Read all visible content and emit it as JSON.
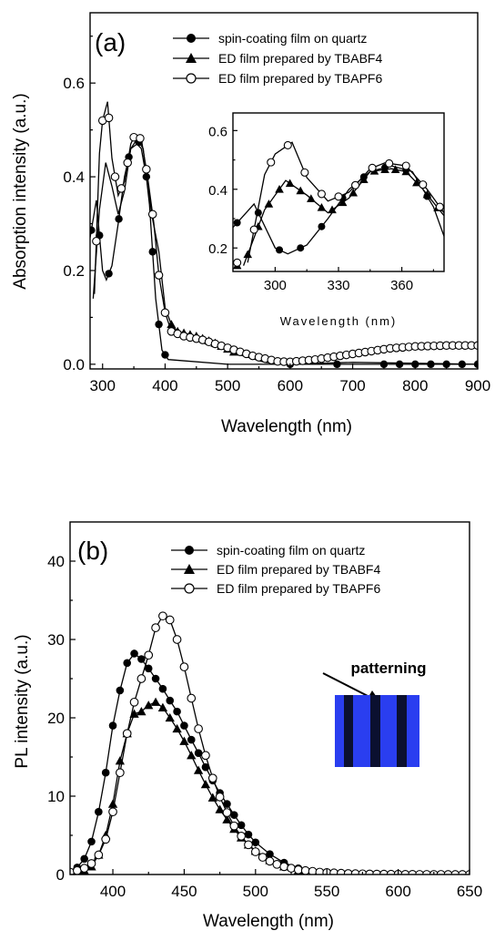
{
  "chart_data": [
    {
      "type": "line",
      "panel_label": "(a)",
      "xlabel": "Wavelength (nm)",
      "ylabel": "Absorption intensity (a.u.)",
      "xlim": [
        280,
        900
      ],
      "ylim": [
        -0.01,
        0.75
      ],
      "xticks": [
        300,
        400,
        500,
        600,
        700,
        800,
        900
      ],
      "yticks": [
        0.0,
        0.2,
        0.4,
        0.6
      ],
      "ytick_labels": [
        "0.0",
        "0.2",
        "0.4",
        "0.6"
      ],
      "legend_position": "top-right",
      "series": [
        {
          "name": "spin-coating film on quartz",
          "marker": "filled-circle",
          "points": [
            [
              280,
              0.27
            ],
            [
              290,
              0.35
            ],
            [
              300,
              0.2
            ],
            [
              306,
              0.18
            ],
            [
              315,
              0.21
            ],
            [
              325,
              0.3
            ],
            [
              335,
              0.4
            ],
            [
              345,
              0.46
            ],
            [
              355,
              0.48
            ],
            [
              365,
              0.46
            ],
            [
              375,
              0.34
            ],
            [
              385,
              0.14
            ],
            [
              395,
              0.03
            ],
            [
              405,
              0.01
            ],
            [
              500,
              0.0
            ],
            [
              600,
              0.0
            ],
            [
              700,
              0.0
            ],
            [
              800,
              0.0
            ],
            [
              900,
              0.0
            ]
          ],
          "marker_x": [
            282,
            295,
            310,
            326,
            342,
            358,
            370,
            380,
            390,
            400,
            600,
            675,
            750,
            775,
            800,
            825,
            850,
            875,
            900
          ]
        },
        {
          "name": "ED film prepared by TBABF4",
          "marker": "filled-triangle",
          "points": [
            [
              285,
              0.14
            ],
            [
              295,
              0.33
            ],
            [
              305,
              0.43
            ],
            [
              315,
              0.38
            ],
            [
              325,
              0.32
            ],
            [
              335,
              0.37
            ],
            [
              345,
              0.46
            ],
            [
              355,
              0.47
            ],
            [
              362,
              0.46
            ],
            [
              370,
              0.4
            ],
            [
              380,
              0.31
            ],
            [
              390,
              0.24
            ],
            [
              400,
              0.12
            ],
            [
              410,
              0.085
            ],
            [
              420,
              0.07
            ],
            [
              450,
              0.06
            ],
            [
              480,
              0.045
            ],
            [
              520,
              0.02
            ],
            [
              560,
              0.004
            ],
            [
              600,
              0.0
            ],
            [
              650,
              0.002
            ],
            [
              700,
              0.004
            ],
            [
              750,
              0.003
            ],
            [
              800,
              0.002
            ],
            [
              850,
              0.001
            ],
            [
              900,
              0.0
            ]
          ],
          "marker_x": [
            410,
            420,
            430,
            440,
            450,
            460,
            470,
            480,
            490,
            500,
            510
          ]
        },
        {
          "name": "ED film prepared by TBAPF6",
          "marker": "open-circle",
          "points": [
            [
              287,
              0.15
            ],
            [
              295,
              0.45
            ],
            [
              300,
              0.52
            ],
            [
              308,
              0.56
            ],
            [
              315,
              0.44
            ],
            [
              325,
              0.36
            ],
            [
              335,
              0.39
            ],
            [
              345,
              0.47
            ],
            [
              352,
              0.49
            ],
            [
              362,
              0.48
            ],
            [
              372,
              0.4
            ],
            [
              382,
              0.3
            ],
            [
              390,
              0.19
            ],
            [
              400,
              0.11
            ],
            [
              410,
              0.07
            ],
            [
              430,
              0.06
            ],
            [
              460,
              0.052
            ],
            [
              500,
              0.035
            ],
            [
              540,
              0.018
            ],
            [
              580,
              0.006
            ],
            [
              600,
              0.005
            ],
            [
              640,
              0.01
            ],
            [
              680,
              0.018
            ],
            [
              720,
              0.026
            ],
            [
              760,
              0.034
            ],
            [
              800,
              0.038
            ],
            [
              850,
              0.04
            ],
            [
              900,
              0.04
            ]
          ],
          "marker_x": [
            290,
            300,
            310,
            320,
            330,
            340,
            350,
            360,
            370,
            380,
            390,
            400,
            410,
            420,
            430,
            440,
            450,
            460,
            470,
            480,
            490,
            500,
            510,
            520,
            530,
            540,
            550,
            560,
            570,
            580,
            590,
            600,
            610,
            620,
            630,
            640,
            650,
            660,
            670,
            680,
            690,
            700,
            710,
            720,
            730,
            740,
            750,
            760,
            770,
            780,
            790,
            800,
            810,
            820,
            830,
            840,
            850,
            860,
            870,
            880,
            890,
            900
          ]
        }
      ],
      "inset": {
        "xlabel": "Wavelength (nm)",
        "xlim": [
          280,
          380
        ],
        "ylim": [
          0.12,
          0.66
        ],
        "xticks": [
          300,
          330,
          360
        ],
        "yticks": [
          0.2,
          0.4,
          0.6
        ],
        "ytick_labels": [
          "0.2",
          "0.4",
          "0.6"
        ]
      }
    },
    {
      "type": "line",
      "panel_label": "(b)",
      "xlabel": "Wavelength (nm)",
      "ylabel": "PL intensity (a.u.)",
      "xlim": [
        370,
        650
      ],
      "ylim": [
        0,
        45
      ],
      "xticks": [
        400,
        450,
        500,
        550,
        600,
        650
      ],
      "yticks": [
        0,
        10,
        20,
        30,
        40
      ],
      "ytick_labels": [
        "0",
        "10",
        "20",
        "30",
        "40"
      ],
      "legend_position": "top-right",
      "annotation": "patterning",
      "series": [
        {
          "name": "spin-coating film on quartz",
          "marker": "filled-circle",
          "points": [
            [
              370,
              0.3
            ],
            [
              375,
              0.9
            ],
            [
              380,
              2
            ],
            [
              385,
              4.2
            ],
            [
              390,
              8
            ],
            [
              395,
              13
            ],
            [
              400,
              19
            ],
            [
              405,
              23.5
            ],
            [
              410,
              27
            ],
            [
              415,
              28.2
            ],
            [
              420,
              27.5
            ],
            [
              425,
              26.3
            ],
            [
              430,
              25
            ],
            [
              435,
              23.7
            ],
            [
              440,
              22.2
            ],
            [
              445,
              20.8
            ],
            [
              450,
              19
            ],
            [
              455,
              17.2
            ],
            [
              460,
              15.5
            ],
            [
              465,
              13.7
            ],
            [
              470,
              12
            ],
            [
              475,
              10.4
            ],
            [
              480,
              9
            ],
            [
              485,
              7.6
            ],
            [
              490,
              6.3
            ],
            [
              495,
              5.1
            ],
            [
              500,
              4.1
            ],
            [
              510,
              2.6
            ],
            [
              520,
              1.5
            ],
            [
              530,
              0.8
            ],
            [
              540,
              0.45
            ],
            [
              550,
              0.25
            ],
            [
              560,
              0.12
            ],
            [
              570,
              0.05
            ],
            [
              580,
              0.02
            ],
            [
              600,
              0
            ]
          ]
        },
        {
          "name": "ED film prepared by TBABF4",
          "marker": "filled-triangle",
          "points": [
            [
              372,
              0.2
            ],
            [
              380,
              0.5
            ],
            [
              385,
              1
            ],
            [
              390,
              2.5
            ],
            [
              395,
              5
            ],
            [
              400,
              9
            ],
            [
              405,
              14.5
            ],
            [
              410,
              18
            ],
            [
              415,
              20.5
            ],
            [
              420,
              20.8
            ],
            [
              425,
              21.6
            ],
            [
              430,
              22
            ],
            [
              435,
              21.3
            ],
            [
              440,
              20
            ],
            [
              445,
              18.6
            ],
            [
              450,
              17
            ],
            [
              455,
              15.2
            ],
            [
              460,
              13.3
            ],
            [
              465,
              11.5
            ],
            [
              470,
              9.8
            ],
            [
              475,
              8.3
            ],
            [
              480,
              7
            ],
            [
              485,
              5.8
            ],
            [
              490,
              4.7
            ],
            [
              495,
              3.8
            ],
            [
              500,
              3
            ],
            [
              510,
              1.8
            ],
            [
              520,
              1
            ],
            [
              530,
              0.5
            ],
            [
              540,
              0.25
            ],
            [
              550,
              0.1
            ],
            [
              560,
              0.04
            ],
            [
              580,
              0
            ]
          ]
        },
        {
          "name": "ED film prepared by TBAPF6",
          "marker": "open-circle",
          "points": [
            [
              370,
              0.3
            ],
            [
              375,
              0.5
            ],
            [
              380,
              0.8
            ],
            [
              385,
              1.4
            ],
            [
              390,
              2.5
            ],
            [
              395,
              4.5
            ],
            [
              400,
              8
            ],
            [
              405,
              13
            ],
            [
              410,
              18
            ],
            [
              415,
              22
            ],
            [
              420,
              25
            ],
            [
              425,
              28
            ],
            [
              430,
              31.5
            ],
            [
              435,
              33
            ],
            [
              440,
              32.5
            ],
            [
              445,
              30
            ],
            [
              450,
              26.5
            ],
            [
              455,
              22.5
            ],
            [
              460,
              18.6
            ],
            [
              465,
              15.2
            ],
            [
              470,
              12.3
            ],
            [
              475,
              9.9
            ],
            [
              480,
              7.9
            ],
            [
              485,
              6.2
            ],
            [
              490,
              4.9
            ],
            [
              495,
              3.8
            ],
            [
              500,
              2.9
            ],
            [
              505,
              2.2
            ],
            [
              510,
              1.7
            ],
            [
              515,
              1.3
            ],
            [
              520,
              1
            ],
            [
              525,
              0.8
            ],
            [
              530,
              0.6
            ],
            [
              535,
              0.5
            ],
            [
              540,
              0.4
            ],
            [
              545,
              0.3
            ],
            [
              550,
              0.25
            ],
            [
              555,
              0.2
            ],
            [
              560,
              0.16
            ],
            [
              565,
              0.12
            ],
            [
              570,
              0.1
            ],
            [
              575,
              0.08
            ],
            [
              580,
              0.06
            ],
            [
              585,
              0.05
            ],
            [
              590,
              0.04
            ],
            [
              595,
              0.03
            ],
            [
              600,
              0.03
            ],
            [
              605,
              0.02
            ],
            [
              610,
              0.02
            ],
            [
              615,
              0.01
            ],
            [
              620,
              0.01
            ],
            [
              625,
              0.01
            ],
            [
              630,
              0.01
            ],
            [
              635,
              0
            ],
            [
              640,
              0
            ],
            [
              645,
              0
            ],
            [
              650,
              0
            ]
          ]
        }
      ]
    }
  ],
  "panels": {
    "a": {
      "label": "(a)",
      "xlabel": "Wavelength (nm)",
      "ylabel": "Absorption intensity (a.u.)",
      "inset_xlabel": "Wavelength (nm)",
      "legend": [
        "spin-coating film on quartz",
        "ED film prepared by TBABF4",
        "ED film prepared by TBAPF6"
      ]
    },
    "b": {
      "label": "(b)",
      "xlabel": "Wavelength (nm)",
      "ylabel": "PL intensity (a.u.)",
      "annotation": "patterning",
      "legend": [
        "spin-coating film on quartz",
        "ED film prepared by TBABF4",
        "ED film prepared by TBAPF6"
      ]
    }
  },
  "colors": {
    "ink": "#000000",
    "photo_blue": "#2a3ef0",
    "photo_dark": "#0b1030"
  }
}
